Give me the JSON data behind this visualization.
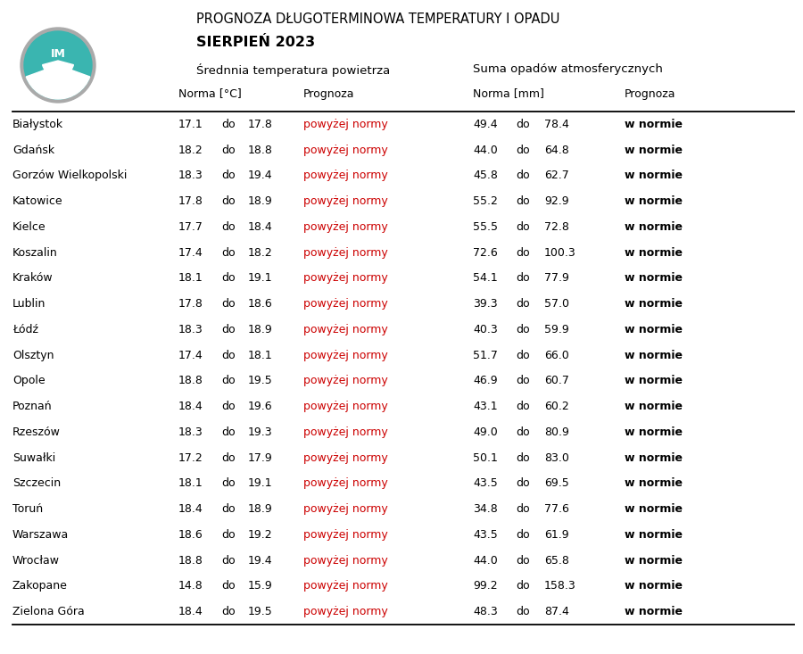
{
  "title_line1": "PROGNOZA DŁUGOTERMINOWA TEMPERATURY I OPADU",
  "title_line2": "SIERPIEŃ 2023",
  "subtitle_temp": "Średnnia temperatura powietrza",
  "subtitle_precip": "Suma opadów atmosferycznych",
  "col_header_norma_temp": "Norma [°C]",
  "col_header_prognoza": "Prognoza",
  "col_header_norma_mm": "Norma [mm]",
  "col_header_prognoza2": "Prognoza",
  "cities": [
    "Białystok",
    "Gdańsk",
    "Gorzów Wielkopolski",
    "Katowice",
    "Kielce",
    "Koszalin",
    "Kraków",
    "Lublin",
    "Łódź",
    "Olsztyn",
    "Opole",
    "Poznań",
    "Rzeszów",
    "Suwałki",
    "Szczecin",
    "Toruń",
    "Warszawa",
    "Wrocław",
    "Zakopane",
    "Zielona Góra"
  ],
  "temp_norma_low": [
    17.1,
    18.2,
    18.3,
    17.8,
    17.7,
    17.4,
    18.1,
    17.8,
    18.3,
    17.4,
    18.8,
    18.4,
    18.3,
    17.2,
    18.1,
    18.4,
    18.6,
    18.8,
    14.8,
    18.4
  ],
  "temp_norma_high": [
    17.8,
    18.8,
    19.4,
    18.9,
    18.4,
    18.2,
    19.1,
    18.6,
    18.9,
    18.1,
    19.5,
    19.6,
    19.3,
    17.9,
    19.1,
    18.9,
    19.2,
    19.4,
    15.9,
    19.5
  ],
  "temp_prognoza": "powyżej normy",
  "precip_norma_low": [
    49.4,
    44.0,
    45.8,
    55.2,
    55.5,
    72.6,
    54.1,
    39.3,
    40.3,
    51.7,
    46.9,
    43.1,
    49.0,
    50.1,
    43.5,
    34.8,
    43.5,
    44.0,
    99.2,
    48.3
  ],
  "precip_norma_high": [
    78.4,
    64.8,
    62.7,
    92.9,
    72.8,
    100.3,
    77.9,
    57.0,
    59.9,
    66.0,
    60.7,
    60.2,
    80.9,
    83.0,
    69.5,
    77.6,
    61.9,
    65.8,
    158.3,
    87.4
  ],
  "precip_prognoza": "w normie",
  "red_color": "#cc0000",
  "black_color": "#000000",
  "bg_color": "#ffffff",
  "line_color": "#000000",
  "logo_teal": "#3ab5b0",
  "logo_gray": "#aaaaaa",
  "logo_white": "#ffffff"
}
